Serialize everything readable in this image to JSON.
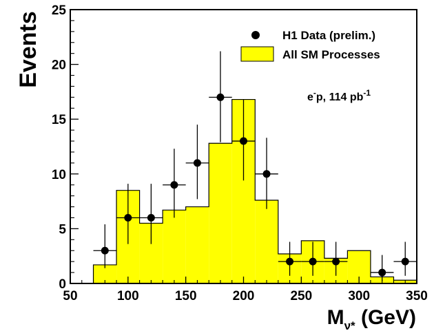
{
  "chart_data": {
    "type": "bar",
    "title": "",
    "xlabel": {
      "main": "M",
      "subscript": "ν*",
      "units": " (GeV)"
    },
    "ylabel": "Events",
    "xlim": [
      50,
      350
    ],
    "ylim": [
      0,
      25
    ],
    "x_ticks": [
      50,
      100,
      150,
      200,
      250,
      300,
      350
    ],
    "y_ticks": [
      0,
      5,
      10,
      15,
      20,
      25
    ],
    "bin_edges": [
      50,
      70,
      90,
      110,
      130,
      150,
      170,
      190,
      210,
      230,
      250,
      270,
      290,
      310,
      330,
      350
    ],
    "series": [
      {
        "name": "All SM Processes",
        "kind": "histogram",
        "color": "#ffff00",
        "values": [
          0,
          1.7,
          8.5,
          5.5,
          6.7,
          7.0,
          12.8,
          16.8,
          7.6,
          2.7,
          3.9,
          2.3,
          3.0,
          0.6,
          0.3
        ]
      },
      {
        "name": "H1 Data (prelim.)",
        "kind": "points",
        "color": "#000000",
        "x": [
          80,
          100,
          120,
          140,
          160,
          180,
          200,
          220,
          240,
          260,
          280,
          320,
          340
        ],
        "values": [
          3,
          6,
          6,
          9,
          11,
          17,
          13,
          10,
          2,
          2,
          2,
          1,
          2
        ],
        "err_up": [
          2.4,
          3.1,
          3.1,
          3.3,
          3.5,
          4.2,
          3.8,
          3.3,
          1.8,
          1.8,
          1.8,
          1.6,
          1.8
        ],
        "err_down": [
          1.6,
          2.4,
          2.4,
          3.0,
          3.3,
          4.1,
          3.6,
          3.2,
          1.3,
          1.3,
          1.3,
          0.8,
          1.3
        ]
      }
    ],
    "legend": {
      "placement": "top-right",
      "entries": [
        {
          "label": "H1 Data (prelim.)",
          "marker": "point"
        },
        {
          "label": "All SM Processes",
          "marker": "box"
        }
      ]
    },
    "annotation": {
      "main": "e",
      "sup1": "-",
      "mid": "p, 114 pb",
      "sup2": "-1"
    },
    "grid": false
  }
}
